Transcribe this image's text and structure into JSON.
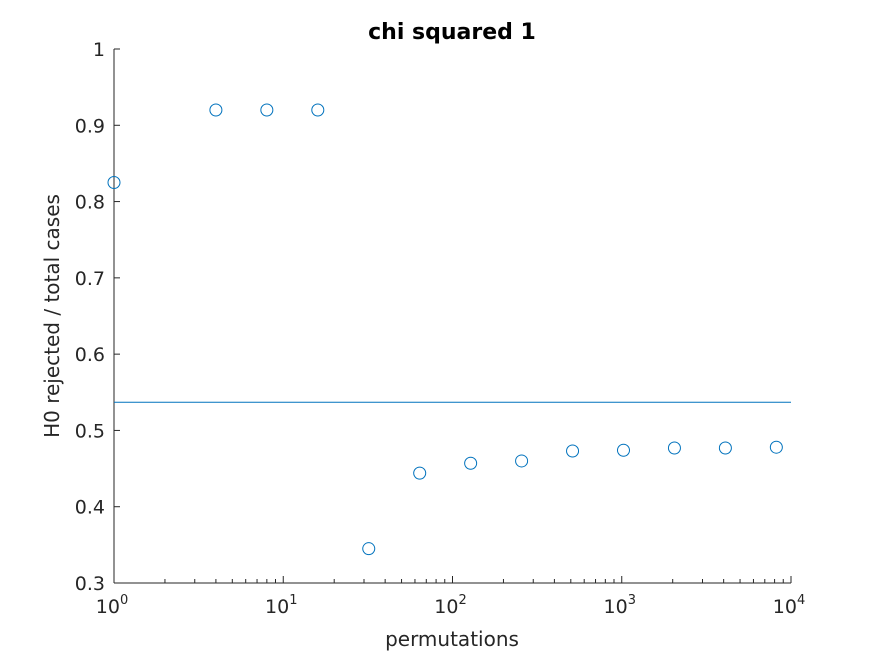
{
  "chart_data": {
    "type": "scatter",
    "title": "chi squared 1",
    "xlabel": "permutations",
    "ylabel": "H0 rejected / total cases",
    "xscale": "log",
    "xlim": [
      1,
      10000
    ],
    "ylim": [
      0.3,
      1
    ],
    "grid": false,
    "xticks": [
      {
        "value": 1,
        "base": "10",
        "exp": "0"
      },
      {
        "value": 10,
        "base": "10",
        "exp": "1"
      },
      {
        "value": 100,
        "base": "10",
        "exp": "2"
      },
      {
        "value": 1000,
        "base": "10",
        "exp": "3"
      },
      {
        "value": 10000,
        "base": "10",
        "exp": "4"
      }
    ],
    "yticks": [
      {
        "value": 0.3,
        "label": "0.3"
      },
      {
        "value": 0.4,
        "label": "0.4"
      },
      {
        "value": 0.5,
        "label": "0.5"
      },
      {
        "value": 0.6,
        "label": "0.6"
      },
      {
        "value": 0.7,
        "label": "0.7"
      },
      {
        "value": 0.8,
        "label": "0.8"
      },
      {
        "value": 0.9,
        "label": "0.9"
      },
      {
        "value": 1,
        "label": "1"
      }
    ],
    "series": [
      {
        "marker": "open-circle",
        "color": "#0072bd",
        "x": [
          1,
          4,
          8,
          16,
          32,
          64,
          128,
          256,
          512,
          1024,
          2048,
          4096,
          8192
        ],
        "y": [
          0.825,
          0.92,
          0.92,
          0.92,
          0.345,
          0.444,
          0.457,
          0.46,
          0.473,
          0.474,
          0.477,
          0.477,
          0.478
        ]
      }
    ],
    "reference_line": {
      "y": 0.537,
      "color": "#0072bd"
    }
  }
}
